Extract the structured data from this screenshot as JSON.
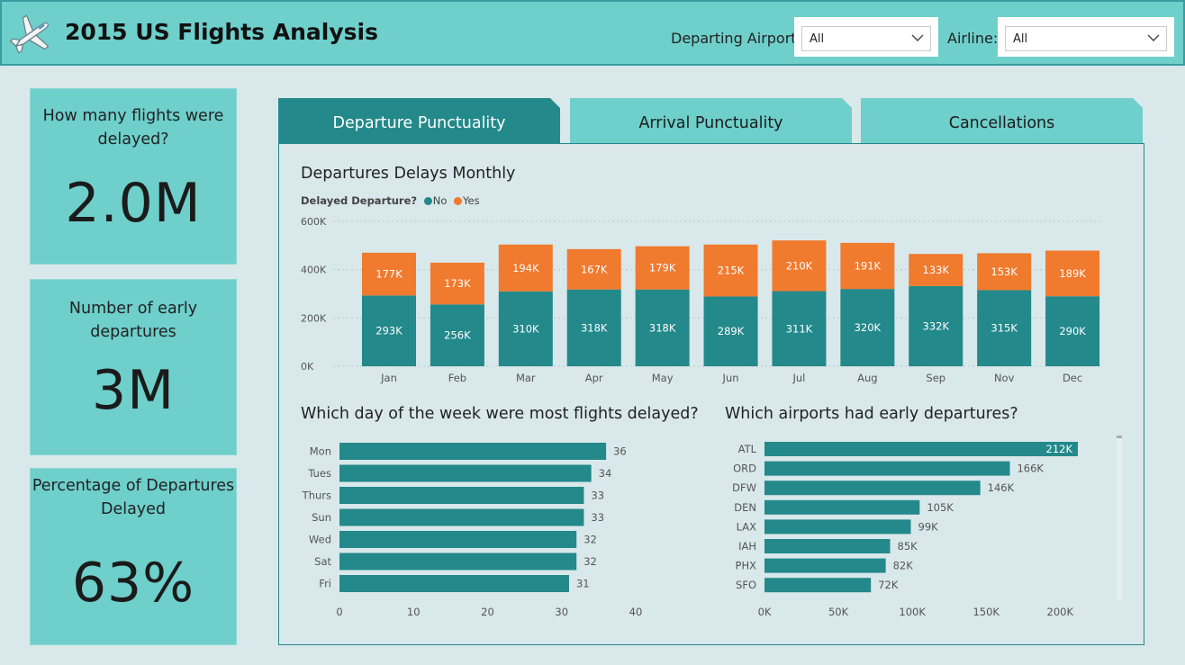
{
  "header": {
    "title": "2015 US Flights Analysis",
    "airport_label": "Departing Airport:",
    "airport_value": "All",
    "airline_label": "Airline:",
    "airline_value": "All"
  },
  "kpis": [
    {
      "label_lines": [
        "How many flights were",
        "delayed?"
      ],
      "value": "2.0M"
    },
    {
      "label_lines": [
        "Number of early",
        "departures"
      ],
      "value": "3M"
    },
    {
      "label_lines": [
        "Percentage of Departures",
        "Delayed"
      ],
      "value": "63%"
    }
  ],
  "tabs": [
    "Departure Punctuality",
    "Arrival Punctuality",
    "Cancellations"
  ],
  "active_tab": 0,
  "colors": {
    "teal": "#23898b",
    "orange": "#f07a2e",
    "light_teal": "#6ecfcb"
  },
  "monthly": {
    "title": "Departures Delays Monthly",
    "legend_title": "Delayed Departure?",
    "legend_no": "No",
    "legend_yes": "Yes"
  },
  "weekday": {
    "title": "Which day of the week were most flights delayed?"
  },
  "airports": {
    "title": "Which airports had early departures?"
  },
  "chart_data": [
    {
      "type": "bar",
      "stacked": true,
      "title": "Departures Delays Monthly",
      "categories": [
        "Jan",
        "Feb",
        "Mar",
        "Apr",
        "May",
        "Jun",
        "Jul",
        "Aug",
        "Sep",
        "Nov",
        "Dec"
      ],
      "series": [
        {
          "name": "No",
          "values": [
            293,
            256,
            310,
            318,
            318,
            289,
            311,
            320,
            332,
            315,
            290
          ],
          "labels": [
            "293K",
            "256K",
            "310K",
            "318K",
            "318K",
            "289K",
            "311K",
            "320K",
            "332K",
            "315K",
            "290K"
          ]
        },
        {
          "name": "Yes",
          "values": [
            177,
            173,
            194,
            167,
            179,
            215,
            210,
            191,
            133,
            153,
            189
          ],
          "labels": [
            "177K",
            "173K",
            "194K",
            "167K",
            "179K",
            "215K",
            "210K",
            "191K",
            "133K",
            "153K",
            "189K"
          ]
        }
      ],
      "ylim": [
        0,
        600
      ],
      "yticks": [
        "0K",
        "200K",
        "400K",
        "600K"
      ],
      "grid": true,
      "legend": "top-left"
    },
    {
      "type": "bar",
      "orientation": "horizontal",
      "title": "Which day of the week were most flights delayed?",
      "categories": [
        "Mon",
        "Tues",
        "Thurs",
        "Sun",
        "Wed",
        "Sat",
        "Fri"
      ],
      "values": [
        36,
        34,
        33,
        33,
        32,
        32,
        31
      ],
      "xlim": [
        0,
        40
      ],
      "xticks": [
        "0",
        "10",
        "20",
        "30",
        "40"
      ]
    },
    {
      "type": "bar",
      "orientation": "horizontal",
      "title": "Which airports had early departures?",
      "categories": [
        "ATL",
        "ORD",
        "DFW",
        "DEN",
        "LAX",
        "IAH",
        "PHX",
        "SFO"
      ],
      "values": [
        212,
        166,
        146,
        105,
        99,
        85,
        82,
        72
      ],
      "labels": [
        "212K",
        "166K",
        "146K",
        "105K",
        "99K",
        "85K",
        "82K",
        "72K"
      ],
      "xlim": [
        0,
        212
      ],
      "xticks": [
        "0K",
        "50K",
        "100K",
        "150K",
        "200K"
      ]
    }
  ]
}
